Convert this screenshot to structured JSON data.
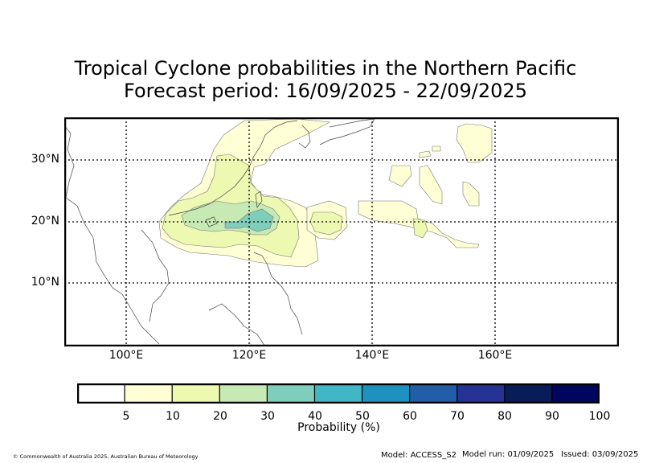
{
  "title": {
    "line1": "Tropical Cyclone probabilities in the Northern Pacific",
    "line2": "Forecast period: 16/09/2025 - 22/09/2025"
  },
  "map": {
    "lat_labels": [
      "30°N",
      "20°N",
      "10°N"
    ],
    "lon_labels": [
      "100°E",
      "120°E",
      "140°E",
      "160°E"
    ],
    "gridlines": "dotted"
  },
  "colorbar": {
    "label": "Probability (%)",
    "ticks": [
      "5",
      "10",
      "20",
      "30",
      "40",
      "50",
      "60",
      "70",
      "80",
      "90",
      "100"
    ],
    "colors": [
      "#ffffff",
      "#ffffd6",
      "#edf8b1",
      "#c7e9b4",
      "#7fcdbb",
      "#41b6c4",
      "#1d91c0",
      "#225ea8",
      "#253494",
      "#081d58",
      "#00065e"
    ]
  },
  "footer": {
    "copyright": "© Commonwealth of Australia 2025, Australian Bureau of Meteorology",
    "model": "Model: ACCESS_S2",
    "model_run": "Model run: 01/09/2025",
    "issued": "Issued: 03/09/2025"
  }
}
